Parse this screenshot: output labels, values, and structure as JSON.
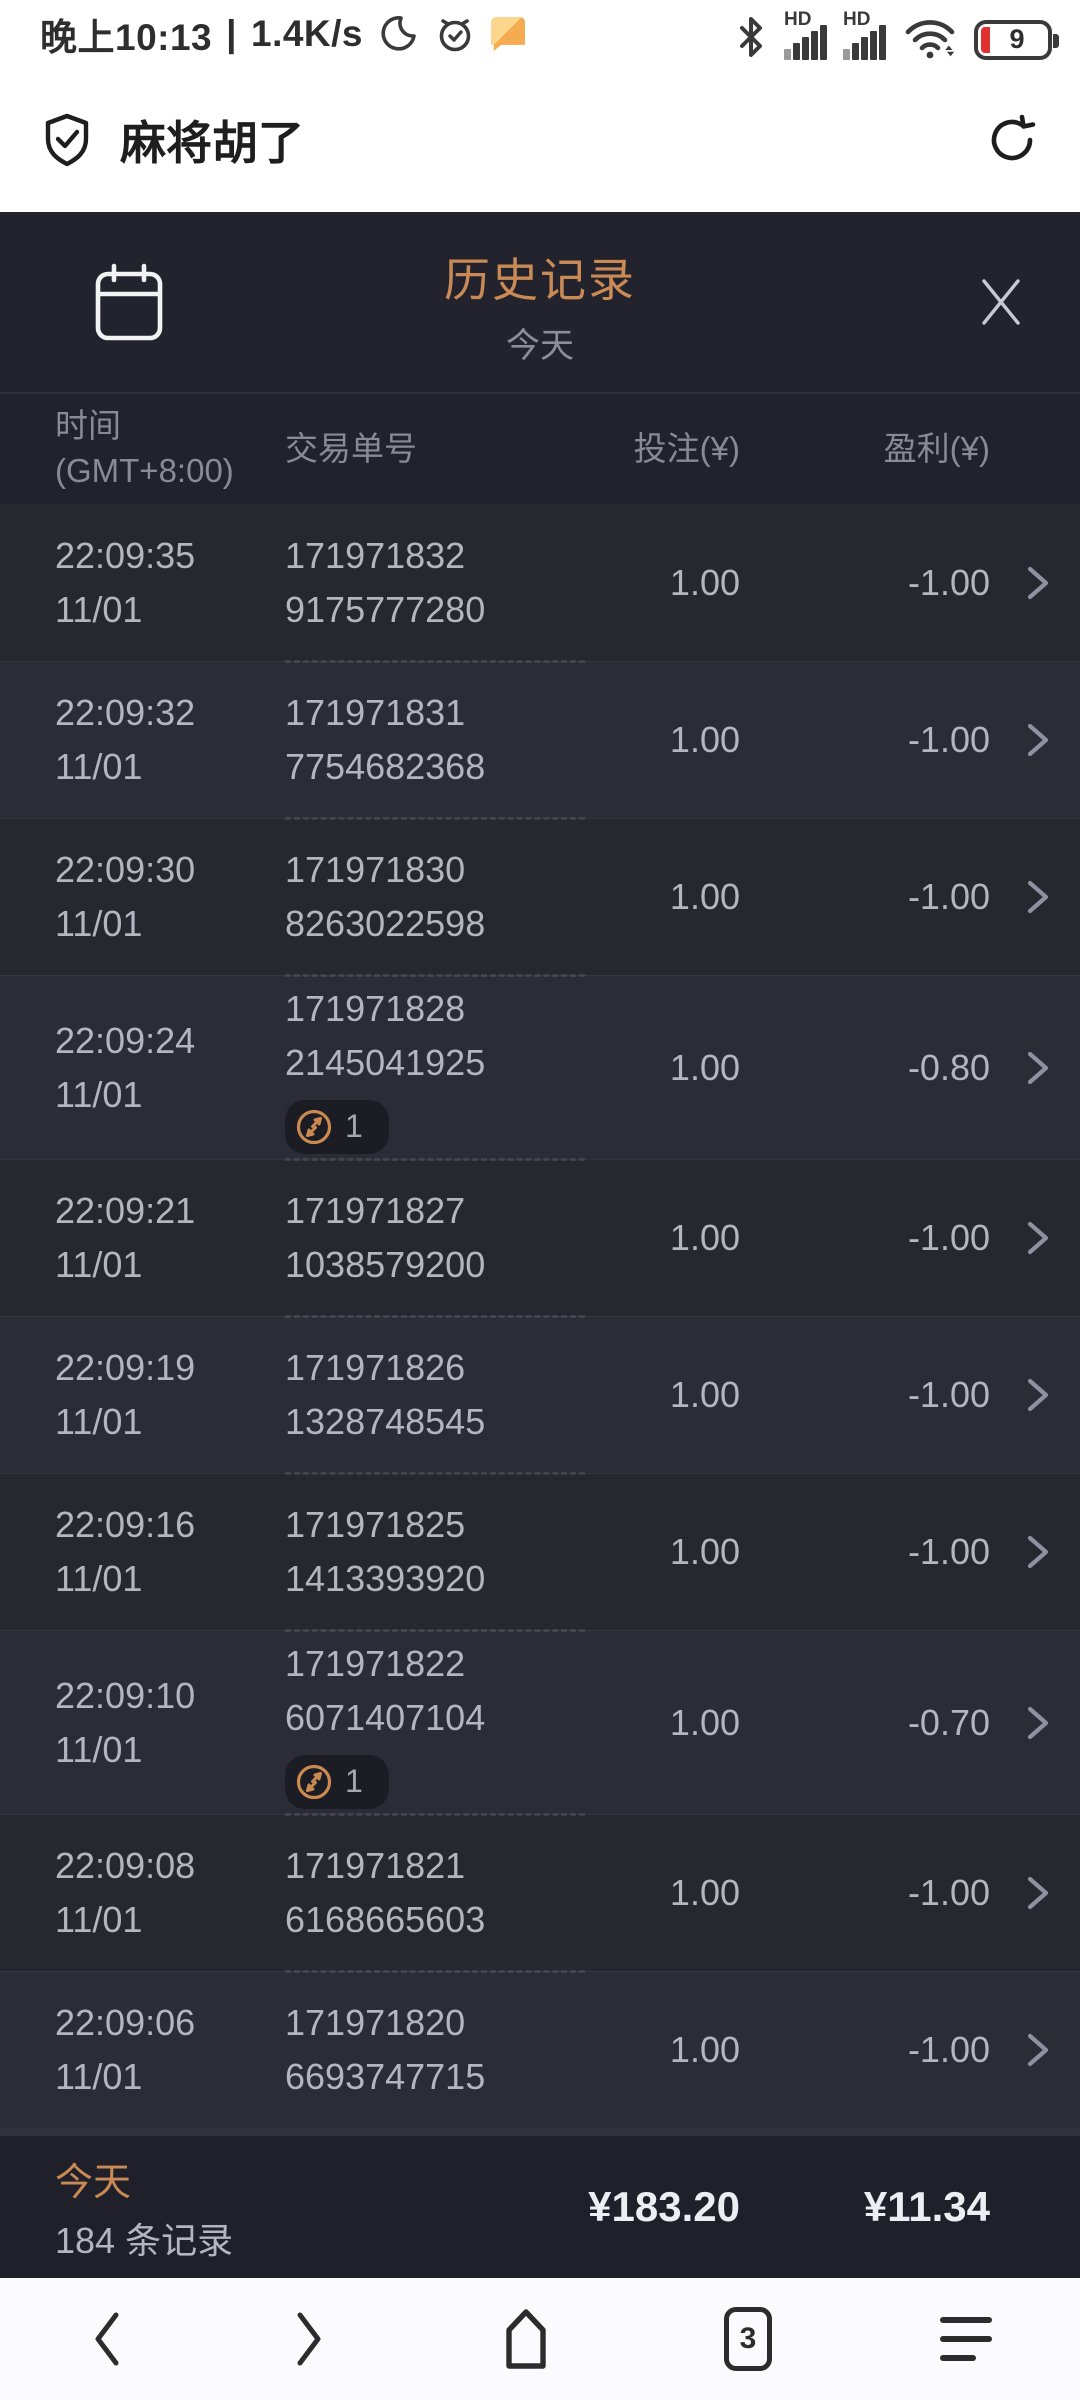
{
  "status_bar": {
    "time": "晚上10:13",
    "separator": "|",
    "net_speed": "1.4K/s",
    "battery_level": "9",
    "sim1_label": "HD",
    "sim2_label": "HD"
  },
  "app_bar": {
    "title": "麻将胡了"
  },
  "history": {
    "title": "历史记录",
    "subtitle": "今天",
    "columns": {
      "time_line1": "时间",
      "time_line2": "(GMT+8:00)",
      "txn": "交易单号",
      "bet": "投注(¥)",
      "profit": "盈利(¥)"
    },
    "rows": [
      {
        "time": "22:09:35",
        "date": "11/01",
        "txn1": "171971832",
        "txn2": "9175777280",
        "bet": "1.00",
        "profit": "-1.00",
        "badge": null
      },
      {
        "time": "22:09:32",
        "date": "11/01",
        "txn1": "171971831",
        "txn2": "7754682368",
        "bet": "1.00",
        "profit": "-1.00",
        "badge": null
      },
      {
        "time": "22:09:30",
        "date": "11/01",
        "txn1": "171971830",
        "txn2": "8263022598",
        "bet": "1.00",
        "profit": "-1.00",
        "badge": null
      },
      {
        "time": "22:09:24",
        "date": "11/01",
        "txn1": "171971828",
        "txn2": "2145041925",
        "bet": "1.00",
        "profit": "-0.80",
        "badge": "1"
      },
      {
        "time": "22:09:21",
        "date": "11/01",
        "txn1": "171971827",
        "txn2": "1038579200",
        "bet": "1.00",
        "profit": "-1.00",
        "badge": null
      },
      {
        "time": "22:09:19",
        "date": "11/01",
        "txn1": "171971826",
        "txn2": "1328748545",
        "bet": "1.00",
        "profit": "-1.00",
        "badge": null
      },
      {
        "time": "22:09:16",
        "date": "11/01",
        "txn1": "171971825",
        "txn2": "1413393920",
        "bet": "1.00",
        "profit": "-1.00",
        "badge": null
      },
      {
        "time": "22:09:10",
        "date": "11/01",
        "txn1": "171971822",
        "txn2": "6071407104",
        "bet": "1.00",
        "profit": "-0.70",
        "badge": "1"
      },
      {
        "time": "22:09:08",
        "date": "11/01",
        "txn1": "171971821",
        "txn2": "6168665603",
        "bet": "1.00",
        "profit": "-1.00",
        "badge": null
      },
      {
        "time": "22:09:06",
        "date": "11/01",
        "txn1": "171971820",
        "txn2": "6693747715",
        "bet": "1.00",
        "profit": "-1.00",
        "badge": null
      }
    ],
    "summary": {
      "day_label": "今天",
      "record_count": "184 条记录",
      "bet_total": "¥183.20",
      "profit_total": "¥11.34"
    }
  },
  "bottom_nav": {
    "tab_count": "3"
  },
  "colors": {
    "accent_orange": "#c98a55",
    "modal_bg": "#23232d",
    "row_odd": "#27272f",
    "row_even": "#2c2c37",
    "battery_alert": "#e03131",
    "note_icon_orange": "#f5ab50"
  }
}
